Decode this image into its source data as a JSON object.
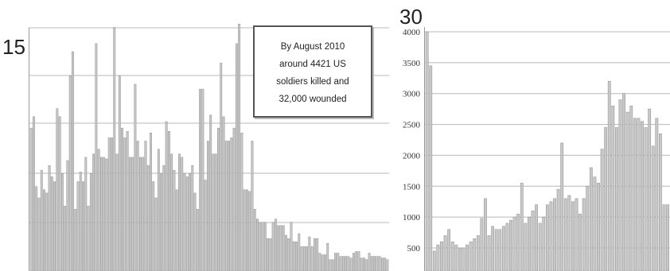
{
  "cut_labels": {
    "left_top": "15",
    "right_top": "30"
  },
  "annotation": [
    "By August 2010",
    "around 4421 US",
    "soldiers killed and",
    "32,000 wounded"
  ],
  "colors": {
    "bar_fill": "#c8c8c8",
    "bar_edge": "#8f8f8f",
    "grid": "#b8b8b8",
    "axis": "#999999"
  },
  "chart_data": [
    {
      "type": "bar",
      "title": "",
      "xlabel": "",
      "ylabel": "",
      "ylim": [
        0,
        160
      ],
      "yticks": [],
      "grid": true,
      "values": [
        88,
        95,
        52,
        45,
        62,
        50,
        48,
        65,
        58,
        55,
        100,
        95,
        60,
        40,
        68,
        120,
        135,
        38,
        55,
        61,
        55,
        70,
        40,
        60,
        72,
        140,
        75,
        70,
        70,
        69,
        82,
        82,
        150,
        72,
        120,
        88,
        82,
        86,
        70,
        70,
        115,
        80,
        70,
        70,
        80,
        65,
        85,
        55,
        45,
        75,
        60,
        65,
        92,
        86,
        72,
        62,
        50,
        72,
        70,
        60,
        58,
        60,
        65,
        48,
        38,
        112,
        112,
        56,
        80,
        96,
        72,
        72,
        88,
        128,
        95,
        80,
        80,
        82,
        88,
        140,
        152,
        85,
        50,
        50,
        49,
        80,
        38,
        32,
        30,
        30,
        30,
        20,
        20,
        30,
        32,
        28,
        28,
        28,
        22,
        20,
        30,
        18,
        18,
        23,
        15,
        15,
        15,
        21,
        15,
        20,
        20,
        11,
        10,
        10,
        17,
        7,
        7,
        11,
        11,
        9,
        9,
        9,
        9,
        8,
        11,
        12,
        12,
        8,
        8,
        7,
        11,
        9,
        9,
        9,
        9,
        8,
        8,
        7
      ]
    },
    {
      "type": "bar",
      "title": "",
      "xlabel": "",
      "ylabel": "",
      "ylim": [
        0,
        4000
      ],
      "yticks": [
        "4000",
        "3500",
        "3000",
        "2500",
        "2000",
        "1500",
        "1000",
        "500"
      ],
      "grid": true,
      "values": [
        4000,
        3450,
        450,
        550,
        600,
        700,
        800,
        600,
        550,
        500,
        500,
        550,
        600,
        650,
        700,
        980,
        1300,
        700,
        850,
        800,
        800,
        850,
        900,
        950,
        1000,
        1050,
        1550,
        900,
        1000,
        1100,
        1200,
        900,
        1000,
        1200,
        1250,
        1300,
        1450,
        2200,
        1300,
        1350,
        1250,
        1300,
        1050,
        1300,
        1500,
        1800,
        1650,
        1550,
        2100,
        2450,
        3200,
        2800,
        2450,
        2900,
        3000,
        2700,
        2800,
        2600,
        2600,
        2550,
        2450,
        2750,
        2150,
        2600,
        2350,
        1200,
        1200
      ]
    }
  ]
}
